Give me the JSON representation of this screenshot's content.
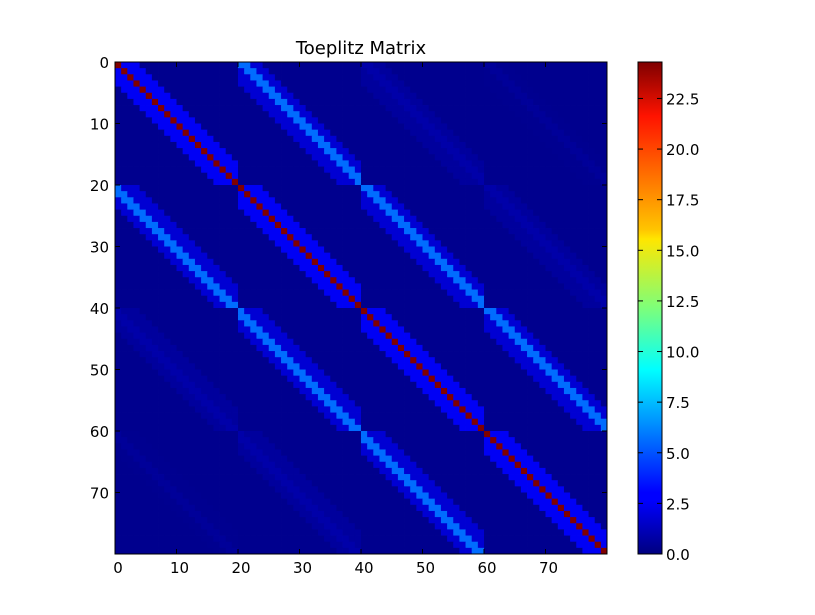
{
  "chart_data": {
    "type": "heatmap",
    "title": "Toeplitz Matrix",
    "xlabel": "",
    "ylabel": "",
    "shape": [
      80,
      80
    ],
    "xlim": [
      0,
      80
    ],
    "ylim": [
      80,
      0
    ],
    "x_ticks": [
      0,
      10,
      20,
      30,
      40,
      50,
      60,
      70
    ],
    "y_ticks": [
      0,
      10,
      20,
      30,
      40,
      50,
      60,
      70
    ],
    "colormap": "jet",
    "color_range": [
      0,
      24.3
    ],
    "colorbar_ticks": [
      "0.0",
      "2.5",
      "5.0",
      "7.5",
      "10.0",
      "12.5",
      "15.0",
      "17.5",
      "20.0",
      "22.5"
    ],
    "structure": {
      "block_size": 20,
      "blocks_per_side": 4,
      "main_diagonal_value": 24.3,
      "bands": [
        {
          "block_offset": 0,
          "peak": 24.3,
          "inner_band": 2.8,
          "decay": "within-block"
        },
        {
          "block_offset": 1,
          "peak": 5.6,
          "inner_band": 2.0
        },
        {
          "block_offset": 2,
          "peak": 1.0,
          "inner_band": 0.7
        },
        {
          "block_offset": 3,
          "peak": 0.6,
          "inner_band": 0.4
        }
      ]
    }
  }
}
